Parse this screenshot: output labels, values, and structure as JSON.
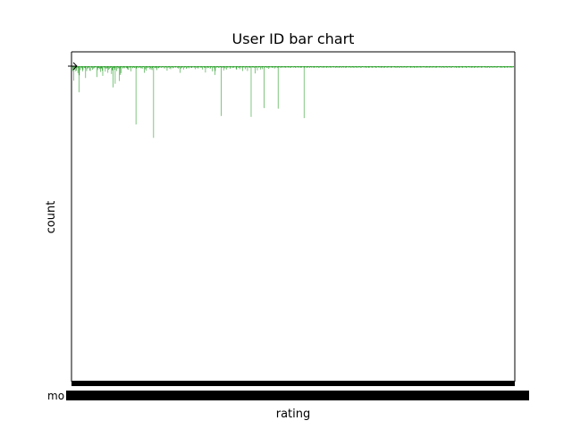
{
  "chart_data": {
    "type": "bar",
    "title": "User ID bar chart",
    "xlabel": "rating",
    "ylabel": "count",
    "x_tick_labels_visible": [
      "mo"
    ],
    "x_ticks": "dense, overlapping (illegible)",
    "y_axis": {
      "tick_labels_visible": false,
      "inverted": true
    },
    "grid": false,
    "legend": "none",
    "bar_color": "#2ca02c",
    "series": [
      {
        "values": [
          1.6,
          0.4,
          4.8,
          0.7,
          1.1,
          1.7,
          0.6,
          1.5,
          0.7,
          0.4,
          2.3,
          0.5,
          8.6,
          3.0,
          0.3,
          1.3,
          0.5,
          0.7,
          0.4,
          1.7,
          1.2,
          0.4,
          0.4,
          0.6,
          0.7,
          3.9,
          0.3,
          1.6,
          0.4,
          0.9,
          0.6,
          0.3,
          0.5,
          1.4,
          1.6,
          0.2,
          0.4,
          0.6,
          1.2,
          0.4,
          0.8,
          0.4,
          0.7,
          0.3,
          0.5,
          0.4,
          0.4,
          3.6,
          1.3,
          0.7,
          0.6,
          0.5,
          1.0,
          0.7,
          1.9,
          0.6,
          0.9,
          1.5,
          3.2,
          0.4,
          0.4,
          0.4,
          0.7,
          1.8,
          0.4,
          0.8,
          0.7,
          0.5,
          2.2,
          1.2,
          0.4,
          0.9,
          0.5,
          0.6,
          0.3,
          2.6,
          1.3,
          1.4,
          7.0,
          0.6,
          0.5,
          1.2,
          5.8,
          0.5,
          0.4,
          1.6,
          0.3,
          0.8,
          0.5,
          0.7,
          4.9,
          0.7,
          2.9,
          2.3,
          0.3,
          0.4,
          0.5,
          0.8,
          0.5,
          0.4,
          0.7,
          0.4,
          0.3,
          0.6,
          0.5,
          1.0,
          0.7,
          1.2,
          0.4,
          0.4,
          0.6,
          0.4,
          1.7,
          0.3,
          0.4,
          0.5,
          0.7,
          0.3,
          0.5,
          0.6,
          0.5,
          0.4,
          19.2,
          0.8,
          0.5,
          0.4,
          0.3,
          0.6,
          0.6,
          0.3,
          0.4,
          0.7,
          0.5,
          0.5,
          0.9,
          0.4,
          0.3,
          0.4,
          2.2,
          0.5,
          1.0,
          0.3,
          1.5,
          0.7,
          0.5,
          0.4,
          0.4,
          0.5,
          1.0,
          0.3,
          0.6,
          1.1,
          0.4,
          1.3,
          0.6,
          0.3,
          23.6,
          0.4,
          0.5,
          0.6,
          0.7,
          0.4,
          1.3,
          0.5,
          0.4,
          0.7,
          0.6,
          0.5,
          0.3,
          0.4,
          0.4,
          0.6,
          0.5,
          0.3,
          0.4,
          0.4,
          0.4,
          0.8,
          0.5,
          0.3,
          0.4,
          0.5,
          1.5,
          0.4,
          0.6,
          0.3,
          0.3,
          0.8,
          0.5,
          1.0,
          0.5,
          0.3,
          0.4,
          0.7,
          0.5,
          0.5,
          0.3,
          0.4,
          0.4,
          0.5,
          0.3,
          0.4,
          0.6,
          0.4,
          0.8,
          0.4,
          0.5,
          2.2,
          0.3,
          0.8,
          0.6,
          0.4,
          0.4,
          0.3,
          1.1,
          0.4,
          0.5,
          0.3,
          0.4,
          0.9,
          0.6,
          0.4,
          0.5,
          0.3,
          0.7,
          0.4,
          0.3,
          0.5,
          0.4,
          0.6,
          0.5,
          0.4,
          0.3,
          0.4,
          0.5,
          0.4,
          1.0,
          0.3,
          0.4,
          0.6,
          0.5,
          0.3,
          0.8,
          0.5,
          0.4,
          0.3,
          0.4,
          0.5,
          0.4,
          0.5,
          1.1,
          0.4,
          0.3,
          0.5,
          0.4,
          0.6,
          2.1,
          0.4,
          0.3,
          0.7,
          0.5,
          0.4,
          0.6,
          0.4,
          0.3,
          0.9,
          0.5,
          0.4,
          0.3,
          1.7,
          0.4,
          0.5,
          0.3,
          0.7,
          2.9,
          1.6,
          0.4,
          0.5,
          0.4,
          0.3,
          0.4,
          0.6,
          0.4,
          0.5,
          0.3,
          0.4,
          16.4,
          0.5,
          0.4,
          0.6,
          0.3,
          1.4,
          0.4,
          0.5,
          0.8,
          0.4,
          0.3,
          1.1,
          0.5,
          0.4,
          0.4,
          0.5,
          0.3,
          0.4,
          0.9,
          0.4,
          0.5,
          0.3,
          0.4,
          0.6,
          0.4,
          0.5,
          0.4,
          0.3,
          0.4,
          0.8,
          1.2,
          0.4,
          0.3,
          0.5,
          0.4,
          0.6,
          1.0,
          0.3,
          0.4,
          0.5,
          0.4,
          0.4,
          1.6,
          0.3,
          0.5,
          0.4,
          0.4,
          1.0,
          0.5,
          0.3,
          0.4,
          1.6,
          0.4,
          0.3,
          0.5,
          0.4,
          0.6,
          0.4,
          16.7,
          0.4,
          0.3,
          0.5,
          0.4,
          0.4,
          0.6,
          0.3,
          2.4,
          0.4,
          0.5,
          0.4,
          1.4,
          0.3,
          0.4,
          0.5,
          0.4,
          0.3,
          1.1,
          0.5,
          0.4,
          0.4,
          1.0,
          0.3,
          0.4,
          13.8,
          0.5,
          0.4,
          0.3,
          0.4,
          0.6,
          0.4,
          0.5,
          0.3,
          0.9,
          0.4,
          0.5,
          0.4,
          0.3,
          0.4,
          0.6,
          0.4,
          0.5,
          0.3,
          0.4,
          0.8,
          0.4,
          0.5,
          0.3,
          0.4,
          0.4,
          0.6,
          14.0,
          0.4,
          0.3,
          0.5,
          0.4,
          0.4,
          0.6,
          0.3,
          0.4,
          0.5,
          0.4,
          0.4,
          0.3,
          0.5,
          0.4,
          0.6,
          0.4,
          0.3,
          0.4,
          0.5,
          0.4,
          0.4,
          0.3,
          0.6,
          0.4,
          0.5,
          0.4,
          0.3,
          0.4,
          0.4,
          0.5,
          0.3,
          0.4,
          0.6,
          0.4,
          0.4,
          0.5,
          0.3,
          0.4,
          0.4,
          0.5,
          0.4,
          0.3,
          0.6,
          0.4,
          0.5,
          0.4,
          0.3,
          0.4,
          0.4,
          17.1,
          0.5,
          0.4,
          0.3,
          0.4,
          0.6,
          0.4,
          0.5,
          0.3,
          0.4,
          0.4,
          0.6,
          0.4,
          0.3,
          0.5,
          0.4,
          0.4,
          0.3,
          0.5,
          0.4,
          0.6,
          0.4,
          0.3,
          0.4,
          0.5,
          0.4,
          0.3,
          0.4,
          0.6,
          0.4,
          0.5,
          0.3,
          0.4,
          0.4,
          0.5,
          0.4,
          0.3,
          0.6,
          0.4,
          0.4,
          0.5,
          0.3,
          0.4,
          0.4,
          0.6,
          0.4,
          0.3,
          0.5,
          0.4,
          0.4,
          0.3,
          0.6,
          0.4,
          0.5,
          0.4,
          0.3,
          0.4,
          0.4,
          0.5,
          0.3,
          0.4,
          0.6,
          0.4,
          0.4,
          0.5,
          0.3,
          0.4,
          0.6,
          0.4,
          0.5,
          0.3,
          0.4,
          0.4,
          0.6,
          0.4,
          0.3,
          0.5,
          0.4,
          0.4,
          0.3,
          0.6,
          0.4,
          0.5,
          0.4,
          0.3,
          0.4,
          0.4,
          0.5,
          0.3,
          0.4,
          0.6,
          0.4,
          0.4,
          0.5,
          0.3,
          0.4,
          0.6,
          0.4,
          0.5,
          0.3,
          0.4,
          0.4,
          0.6,
          0.4,
          0.3,
          0.5,
          0.4,
          0.4,
          0.3,
          0.6,
          0.4,
          0.5,
          0.4,
          0.3,
          0.4,
          0.4,
          0.5,
          0.3,
          0.4,
          0.6,
          0.4,
          0.4,
          0.5,
          0.3,
          0.4,
          0.6,
          0.4,
          0.5,
          0.3,
          0.4,
          0.4,
          0.6,
          0.4,
          0.3,
          0.5,
          0.4,
          0.4,
          0.3,
          0.6,
          0.4,
          0.5,
          0.4,
          0.3,
          0.4,
          0.4,
          0.5,
          0.3,
          0.4,
          0.6,
          0.4,
          0.4,
          0.5,
          0.3,
          0.4,
          0.6,
          0.4,
          0.5,
          0.3,
          0.4,
          0.4,
          0.6,
          0.4,
          0.3,
          0.5,
          0.4,
          0.4,
          0.3,
          0.6,
          0.4,
          0.5,
          0.4,
          0.3,
          0.4,
          0.4,
          0.5,
          0.3,
          0.4,
          0.6,
          0.4,
          0.4,
          0.5,
          0.3,
          0.4,
          0.6,
          0.4,
          0.5,
          0.3,
          0.4,
          0.4,
          0.6,
          0.4,
          0.3,
          0.5,
          0.4,
          0.4,
          0.3,
          0.6,
          0.4,
          0.5,
          0.4,
          0.3,
          0.4,
          0.4,
          0.5,
          0.3,
          0.4,
          0.6,
          0.4,
          0.4,
          0.5,
          0.3,
          0.4,
          0.6,
          0.4,
          0.5,
          0.3,
          0.4,
          0.4,
          0.6,
          0.4,
          0.3,
          0.5,
          0.4,
          0.4,
          0.3,
          0.6,
          0.4,
          0.5,
          0.4,
          0.3,
          0.4,
          0.4,
          0.5,
          0.3,
          0.4,
          0.6,
          0.4,
          0.4,
          0.5,
          0.3,
          0.4,
          0.6,
          0.4,
          0.5,
          0.3,
          0.4,
          0.4,
          0.6,
          0.4,
          0.3,
          0.5,
          0.4,
          0.4,
          0.3,
          0.6,
          0.4,
          0.5,
          0.4,
          0.3,
          0.4,
          0.4,
          0.5,
          0.3,
          0.4,
          0.6,
          0.4,
          0.4,
          0.5,
          0.3,
          0.4,
          0.6,
          0.4,
          0.5,
          0.3,
          0.4,
          0.4,
          0.6,
          0.4,
          0.3,
          0.5,
          0.4,
          0.4,
          0.3,
          0.6,
          0.4,
          0.5,
          0.4,
          0.3,
          0.4,
          0.4,
          0.5,
          0.3,
          0.4,
          0.6,
          0.4,
          0.4,
          0.5,
          0.3,
          0.4,
          0.6,
          0.4,
          0.5,
          0.3,
          0.4,
          0.4,
          0.6,
          0.4,
          0.3,
          0.5,
          0.4,
          0.4,
          0.3,
          0.6,
          0.4,
          0.5,
          0.4,
          0.3,
          0.4,
          0.4,
          0.5,
          0.3,
          0.4,
          0.6,
          0.4,
          0.4,
          0.5,
          0.3,
          0.4,
          0.6,
          0.4,
          0.5,
          0.3,
          0.4,
          0.4,
          0.6,
          0.4,
          0.3,
          0.5,
          0.4,
          0.4,
          0.3,
          0.6,
          0.4,
          0.5,
          0.4,
          0.3,
          0.4,
          0.4,
          0.5,
          0.3,
          0.4,
          0.6,
          0.4,
          0.4,
          0.5,
          0.3,
          0.4,
          0.6,
          0.4,
          0.5,
          0.3,
          0.4,
          0.4,
          0.6,
          0.4,
          0.3,
          0.5,
          0.4,
          0.4,
          0.3,
          0.6,
          0.4,
          0.5,
          0.4,
          0.3,
          0.4,
          0.4,
          0.5,
          0.3,
          0.4,
          0.6,
          0.4,
          0.4,
          0.5,
          0.3,
          0.4,
          0.6,
          0.4,
          0.5,
          0.3,
          0.4,
          0.4,
          0.6,
          0.4,
          0.3,
          0.5,
          0.4,
          0.4,
          0.3,
          0.6,
          0.4,
          0.5,
          0.4,
          0.3,
          0.4
        ]
      }
    ]
  }
}
